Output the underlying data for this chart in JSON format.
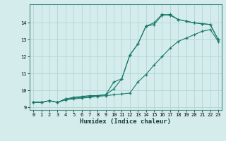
{
  "xlabel": "Humidex (Indice chaleur)",
  "background_color": "#d4edec",
  "grid_color": "#b8d8d6",
  "line_color": "#1a7a6a",
  "xlim": [
    -0.5,
    23.4
  ],
  "ylim": [
    8.85,
    15.1
  ],
  "yticks": [
    9,
    10,
    11,
    12,
    13,
    14
  ],
  "xticks": [
    0,
    1,
    2,
    3,
    4,
    5,
    6,
    7,
    8,
    9,
    10,
    11,
    12,
    13,
    14,
    15,
    16,
    17,
    18,
    19,
    20,
    21,
    22,
    23
  ],
  "line1_x": [
    0,
    1,
    2,
    3,
    4,
    5,
    6,
    7,
    8,
    9,
    10,
    11,
    12,
    13,
    14,
    15,
    16,
    17,
    18,
    19,
    20,
    21,
    22,
    23
  ],
  "line1_y": [
    9.3,
    9.3,
    9.4,
    9.3,
    9.5,
    9.6,
    9.65,
    9.7,
    9.7,
    9.75,
    10.5,
    10.7,
    12.1,
    12.75,
    13.8,
    13.9,
    14.45,
    14.5,
    14.2,
    14.1,
    14.0,
    13.95,
    13.9,
    13.0
  ],
  "line2_x": [
    0,
    1,
    2,
    3,
    4,
    5,
    6,
    7,
    8,
    9,
    10,
    11,
    12,
    13,
    14,
    15,
    16,
    17,
    18,
    19,
    20,
    21,
    22,
    23
  ],
  "line2_y": [
    9.3,
    9.3,
    9.4,
    9.3,
    9.5,
    9.55,
    9.6,
    9.65,
    9.7,
    9.75,
    10.1,
    10.7,
    12.1,
    12.75,
    13.8,
    14.0,
    14.5,
    14.45,
    14.2,
    14.1,
    14.0,
    13.95,
    13.9,
    13.0
  ],
  "line3_x": [
    0,
    1,
    2,
    3,
    4,
    5,
    6,
    7,
    8,
    9,
    10,
    11,
    12,
    13,
    14,
    15,
    16,
    17,
    18,
    19,
    20,
    21,
    22,
    23
  ],
  "line3_y": [
    9.3,
    9.3,
    9.4,
    9.3,
    9.45,
    9.5,
    9.55,
    9.6,
    9.65,
    9.7,
    9.75,
    9.8,
    9.85,
    10.5,
    10.95,
    11.5,
    12.0,
    12.5,
    12.9,
    13.1,
    13.3,
    13.5,
    13.6,
    12.9
  ],
  "tick_fontsize": 5.0,
  "xlabel_fontsize": 6.5
}
